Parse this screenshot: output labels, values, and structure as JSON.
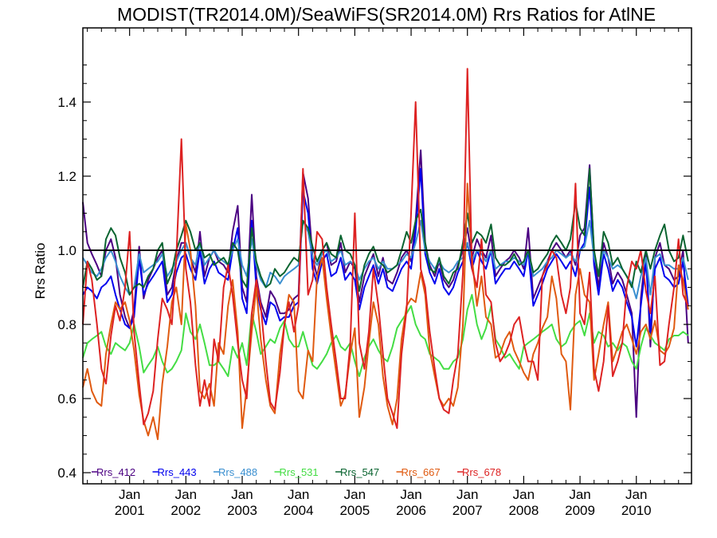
{
  "chart_data": {
    "type": "line",
    "title": "MODIST(TR2014.0M)/SeaWiFS(SR2014.0M)  Rrs Ratios for AtlNE",
    "xlabel": "",
    "ylabel": "Rrs Ratio",
    "ylim": [
      0.37,
      1.6
    ],
    "ytick_labels": [
      "0.4",
      "0.6",
      "0.8",
      "1.0",
      "1.2",
      "1.4"
    ],
    "xlim": [
      2000.17,
      2010.98
    ],
    "x_ticks": [
      {
        "month": "Jan",
        "year": "2001"
      },
      {
        "month": "Jan",
        "year": "2002"
      },
      {
        "month": "Jan",
        "year": "2003"
      },
      {
        "month": "Jan",
        "year": "2004"
      },
      {
        "month": "Jan",
        "year": "2005"
      },
      {
        "month": "Jan",
        "year": "2006"
      },
      {
        "month": "Jan",
        "year": "2007"
      },
      {
        "month": "Jan",
        "year": "2008"
      },
      {
        "month": "Jan",
        "year": "2009"
      },
      {
        "month": "Jan",
        "year": "2010"
      }
    ],
    "reference_line": 1.0,
    "grid": false,
    "legend_position": "bottom",
    "x": [
      2000.17,
      2000.25,
      2000.33,
      2000.42,
      2000.5,
      2000.58,
      2000.67,
      2000.75,
      2000.83,
      2000.92,
      2001.0,
      2001.08,
      2001.17,
      2001.25,
      2001.33,
      2001.42,
      2001.5,
      2001.58,
      2001.67,
      2001.75,
      2001.83,
      2001.92,
      2002.0,
      2002.08,
      2002.17,
      2002.25,
      2002.33,
      2002.42,
      2002.5,
      2002.58,
      2002.67,
      2002.75,
      2002.83,
      2002.92,
      2003.0,
      2003.08,
      2003.17,
      2003.25,
      2003.33,
      2003.42,
      2003.5,
      2003.58,
      2003.67,
      2003.75,
      2003.83,
      2003.92,
      2004.0,
      2004.08,
      2004.17,
      2004.25,
      2004.33,
      2004.42,
      2004.5,
      2004.58,
      2004.67,
      2004.75,
      2004.83,
      2004.92,
      2005.0,
      2005.08,
      2005.17,
      2005.25,
      2005.33,
      2005.42,
      2005.5,
      2005.58,
      2005.67,
      2005.75,
      2005.83,
      2005.92,
      2006.0,
      2006.08,
      2006.17,
      2006.25,
      2006.33,
      2006.42,
      2006.5,
      2006.58,
      2006.67,
      2006.75,
      2006.83,
      2006.92,
      2007.0,
      2007.08,
      2007.17,
      2007.25,
      2007.33,
      2007.42,
      2007.5,
      2007.58,
      2007.67,
      2007.75,
      2007.83,
      2007.92,
      2008.0,
      2008.08,
      2008.17,
      2008.25,
      2008.33,
      2008.42,
      2008.5,
      2008.58,
      2008.67,
      2008.75,
      2008.83,
      2008.92,
      2009.0,
      2009.08,
      2009.17,
      2009.25,
      2009.33,
      2009.42,
      2009.5,
      2009.58,
      2009.67,
      2009.75,
      2009.83,
      2009.92,
      2010.0,
      2010.08,
      2010.17,
      2010.25,
      2010.33,
      2010.42,
      2010.5,
      2010.58,
      2010.67,
      2010.75,
      2010.83,
      2010.92
    ],
    "series": [
      {
        "name": "Rrs_412",
        "color": "#4b0082",
        "values": [
          1.13,
          1.02,
          0.99,
          0.96,
          0.93,
          1.0,
          1.03,
          0.98,
          0.88,
          0.82,
          0.79,
          0.84,
          1.01,
          0.87,
          0.92,
          0.95,
          0.98,
          1.0,
          0.88,
          0.9,
          0.97,
          1.02,
          1.02,
          0.98,
          0.94,
          1.05,
          0.93,
          0.98,
          1.0,
          0.97,
          0.96,
          0.94,
          1.05,
          1.12,
          0.9,
          0.86,
          1.15,
          0.93,
          0.86,
          0.82,
          0.89,
          0.87,
          0.83,
          0.83,
          0.84,
          0.87,
          0.88,
          1.21,
          1.14,
          0.98,
          0.93,
          1.0,
          1.02,
          0.96,
          0.97,
          1.02,
          0.94,
          0.97,
          0.95,
          0.86,
          0.93,
          0.96,
          0.99,
          0.93,
          0.98,
          0.92,
          0.91,
          0.94,
          0.98,
          1.0,
          0.97,
          1.08,
          1.27,
          1.02,
          0.96,
          0.93,
          0.97,
          0.92,
          0.9,
          0.92,
          0.96,
          1.0,
          1.06,
          0.98,
          1.03,
          1.0,
          0.98,
          1.04,
          0.93,
          0.95,
          0.97,
          0.98,
          1.0,
          0.98,
          0.95,
          1.06,
          0.87,
          0.9,
          0.93,
          0.97,
          1.0,
          1.02,
          1.0,
          0.98,
          1.0,
          0.96,
          1.04,
          1.06,
          1.23,
          0.99,
          0.9,
          1.02,
          0.98,
          0.91,
          0.94,
          0.92,
          0.88,
          0.83,
          0.55,
          0.87,
          1.0,
          0.74,
          0.98,
          1.02,
          0.96,
          0.95,
          0.92,
          0.93,
          1.0,
          0.75
        ]
      },
      {
        "name": "Rrs_443",
        "color": "#0000ee",
        "values": [
          0.88,
          0.9,
          0.89,
          0.87,
          0.9,
          0.91,
          0.93,
          0.88,
          0.84,
          0.8,
          0.79,
          0.82,
          0.98,
          0.88,
          0.91,
          0.93,
          0.95,
          0.97,
          0.86,
          0.88,
          0.94,
          0.98,
          0.99,
          0.95,
          0.92,
          1.0,
          0.91,
          0.95,
          0.97,
          0.94,
          0.93,
          0.92,
          1.0,
          1.06,
          0.87,
          0.83,
          1.08,
          0.9,
          0.84,
          0.8,
          0.86,
          0.85,
          0.81,
          0.82,
          0.82,
          0.85,
          0.86,
          1.16,
          1.1,
          0.95,
          0.91,
          0.97,
          0.99,
          0.93,
          0.94,
          0.98,
          0.92,
          0.94,
          0.92,
          0.84,
          0.9,
          0.93,
          0.96,
          0.91,
          0.95,
          0.9,
          0.89,
          0.92,
          0.95,
          0.97,
          0.95,
          1.05,
          1.22,
          0.99,
          0.94,
          0.91,
          0.95,
          0.9,
          0.88,
          0.9,
          0.94,
          0.97,
          1.02,
          0.95,
          1.0,
          0.97,
          0.95,
          1.0,
          0.91,
          0.93,
          0.95,
          0.95,
          0.97,
          0.95,
          0.93,
          1.0,
          0.85,
          0.88,
          0.91,
          0.95,
          0.97,
          0.99,
          0.97,
          0.95,
          0.97,
          0.93,
          1.0,
          1.02,
          1.17,
          0.96,
          0.88,
          0.99,
          0.95,
          0.89,
          0.92,
          0.9,
          0.86,
          0.82,
          0.74,
          0.85,
          0.97,
          0.78,
          0.95,
          0.98,
          0.93,
          0.92,
          0.9,
          0.91,
          0.97,
          0.85
        ]
      },
      {
        "name": "Rrs_488",
        "color": "#3a8fd0",
        "values": [
          0.98,
          0.96,
          0.94,
          0.93,
          0.95,
          0.98,
          1.0,
          0.97,
          0.93,
          0.9,
          0.88,
          0.9,
          0.99,
          0.94,
          0.95,
          0.96,
          0.97,
          0.99,
          0.93,
          0.95,
          0.97,
          1.0,
          1.02,
          0.98,
          0.96,
          1.02,
          0.96,
          0.98,
          1.0,
          0.98,
          0.97,
          0.96,
          1.0,
          1.03,
          0.96,
          0.93,
          1.03,
          0.96,
          0.92,
          0.9,
          0.94,
          0.93,
          0.91,
          0.93,
          0.94,
          0.95,
          0.96,
          1.08,
          1.05,
          0.98,
          0.96,
          0.99,
          1.0,
          0.97,
          0.98,
          1.0,
          0.96,
          0.97,
          0.96,
          0.92,
          0.95,
          0.97,
          0.98,
          0.95,
          0.97,
          0.95,
          0.95,
          0.96,
          0.97,
          0.99,
          0.98,
          1.02,
          1.08,
          1.0,
          0.97,
          0.95,
          0.97,
          0.95,
          0.94,
          0.95,
          0.97,
          0.98,
          1.02,
          0.97,
          1.0,
          0.99,
          0.97,
          1.0,
          0.95,
          0.96,
          0.97,
          0.97,
          0.98,
          0.97,
          0.96,
          1.0,
          0.93,
          0.94,
          0.95,
          0.97,
          0.98,
          1.0,
          0.99,
          0.98,
          0.99,
          0.97,
          1.0,
          1.01,
          1.08,
          0.98,
          0.94,
          1.0,
          0.98,
          0.95,
          0.96,
          0.95,
          0.93,
          0.91,
          0.87,
          0.93,
          0.98,
          0.88,
          0.98,
          0.99,
          0.96,
          0.96,
          0.95,
          0.95,
          0.98,
          0.92
        ]
      },
      {
        "name": "Rrs_531",
        "color": "#44dd44",
        "values": [
          0.71,
          0.75,
          0.76,
          0.77,
          0.78,
          0.74,
          0.72,
          0.75,
          0.74,
          0.73,
          0.75,
          0.8,
          0.74,
          0.67,
          0.69,
          0.71,
          0.74,
          0.7,
          0.67,
          0.68,
          0.7,
          0.73,
          0.83,
          0.78,
          0.76,
          0.8,
          0.75,
          0.69,
          0.69,
          0.7,
          0.68,
          0.66,
          0.74,
          0.71,
          0.75,
          0.69,
          0.83,
          0.78,
          0.72,
          0.74,
          0.76,
          0.75,
          0.79,
          0.81,
          0.76,
          0.74,
          0.74,
          0.78,
          0.73,
          0.69,
          0.68,
          0.7,
          0.72,
          0.75,
          0.77,
          0.74,
          0.73,
          0.75,
          0.7,
          0.66,
          0.71,
          0.74,
          0.76,
          0.73,
          0.71,
          0.7,
          0.74,
          0.79,
          0.81,
          0.83,
          0.85,
          0.8,
          0.77,
          0.76,
          0.72,
          0.71,
          0.7,
          0.68,
          0.68,
          0.7,
          0.71,
          0.76,
          0.84,
          0.88,
          0.8,
          0.76,
          0.79,
          0.85,
          0.76,
          0.74,
          0.71,
          0.72,
          0.7,
          0.68,
          0.74,
          0.75,
          0.76,
          0.77,
          0.78,
          0.79,
          0.8,
          0.76,
          0.74,
          0.75,
          0.78,
          0.8,
          0.81,
          0.77,
          0.83,
          0.75,
          0.78,
          0.77,
          0.74,
          0.75,
          0.73,
          0.75,
          0.74,
          0.7,
          0.68,
          0.74,
          0.79,
          0.77,
          0.75,
          0.74,
          0.73,
          0.76,
          0.77,
          0.77,
          0.78,
          0.77
        ]
      },
      {
        "name": "Rrs_547",
        "color": "#0a6430",
        "values": [
          0.9,
          0.97,
          0.95,
          0.92,
          0.93,
          1.03,
          1.06,
          1.04,
          0.98,
          0.94,
          0.88,
          0.9,
          0.91,
          0.9,
          0.93,
          0.95,
          1.0,
          1.02,
          0.91,
          0.94,
          1.0,
          1.04,
          1.08,
          1.05,
          1.0,
          1.02,
          0.98,
          0.99,
          0.96,
          0.97,
          0.98,
          0.96,
          1.02,
          1.0,
          0.92,
          0.9,
          1.06,
          0.97,
          0.93,
          0.9,
          0.91,
          0.95,
          0.93,
          0.94,
          0.96,
          0.98,
          0.97,
          1.08,
          1.06,
          1.01,
          0.97,
          1.0,
          1.02,
          0.99,
          0.98,
          1.04,
          1.0,
          0.99,
          0.96,
          0.89,
          0.96,
          0.99,
          1.01,
          0.97,
          0.96,
          0.94,
          0.95,
          0.96,
          1.0,
          1.05,
          1.02,
          1.08,
          1.11,
          1.02,
          0.95,
          0.94,
          0.98,
          0.93,
          0.91,
          0.94,
          0.95,
          1.02,
          1.1,
          1.02,
          1.05,
          1.04,
          1.02,
          1.07,
          0.98,
          0.96,
          0.96,
          0.97,
          0.99,
          0.96,
          0.97,
          1.0,
          0.94,
          0.95,
          0.97,
          0.99,
          1.02,
          1.04,
          1.02,
          1.0,
          1.03,
          1.13,
          1.06,
          1.04,
          1.22,
          1.0,
          0.93,
          1.05,
          1.02,
          0.96,
          0.98,
          0.95,
          0.93,
          0.9,
          0.97,
          0.94,
          1.0,
          0.95,
          1.0,
          1.04,
          1.07,
          1.0,
          0.97,
          0.98,
          1.04,
          0.97
        ]
      },
      {
        "name": "Rrs_667",
        "color": "#e05a10",
        "values": [
          0.63,
          0.68,
          0.62,
          0.59,
          0.58,
          0.72,
          0.8,
          0.86,
          0.84,
          0.86,
          0.81,
          0.73,
          0.61,
          0.54,
          0.5,
          0.55,
          0.49,
          0.64,
          0.74,
          0.86,
          0.9,
          0.8,
          1.07,
          1.0,
          0.85,
          0.62,
          0.6,
          0.64,
          0.58,
          0.75,
          0.72,
          0.85,
          0.92,
          0.78,
          0.52,
          0.63,
          0.78,
          0.9,
          0.76,
          0.65,
          0.58,
          0.56,
          0.72,
          0.8,
          0.88,
          0.86,
          0.62,
          0.6,
          0.73,
          0.7,
          0.93,
          0.98,
          0.87,
          0.77,
          0.67,
          0.58,
          0.61,
          0.72,
          0.79,
          0.55,
          0.63,
          0.75,
          0.86,
          0.8,
          0.66,
          0.58,
          0.53,
          0.6,
          0.76,
          0.85,
          0.87,
          0.86,
          0.94,
          0.88,
          0.73,
          0.66,
          0.6,
          0.58,
          0.6,
          0.58,
          0.63,
          0.8,
          1.18,
          0.98,
          0.85,
          0.93,
          0.82,
          0.8,
          0.71,
          0.72,
          0.76,
          0.78,
          0.73,
          0.7,
          0.67,
          0.65,
          0.72,
          0.75,
          0.79,
          0.82,
          0.93,
          0.87,
          0.72,
          0.7,
          0.57,
          0.88,
          0.95,
          0.88,
          0.86,
          0.65,
          0.72,
          0.8,
          0.86,
          0.7,
          0.74,
          0.78,
          0.8,
          0.76,
          0.72,
          0.78,
          0.8,
          0.76,
          0.81,
          0.73,
          0.72,
          0.74,
          0.79,
          0.96,
          0.92,
          0.84
        ]
      },
      {
        "name": "Rrs_678",
        "color": "#dd2222",
        "values": [
          0.8,
          0.97,
          0.92,
          0.8,
          0.68,
          0.64,
          0.77,
          0.85,
          0.81,
          0.9,
          1.05,
          0.78,
          0.64,
          0.53,
          0.56,
          0.62,
          0.76,
          0.87,
          0.84,
          0.8,
          0.98,
          1.3,
          0.95,
          0.86,
          0.69,
          0.58,
          0.65,
          0.58,
          0.76,
          0.7,
          0.9,
          0.96,
          0.88,
          0.75,
          0.65,
          0.6,
          0.83,
          0.92,
          0.85,
          0.7,
          0.59,
          0.57,
          0.67,
          0.8,
          0.86,
          0.78,
          0.85,
          1.22,
          0.88,
          0.92,
          1.05,
          1.03,
          0.9,
          0.8,
          0.7,
          0.6,
          0.6,
          0.75,
          1.1,
          0.75,
          0.68,
          0.78,
          0.95,
          0.85,
          0.72,
          0.6,
          0.56,
          0.52,
          0.72,
          0.84,
          1.1,
          1.4,
          0.95,
          0.9,
          0.78,
          0.68,
          0.6,
          0.57,
          0.56,
          0.65,
          0.72,
          0.94,
          1.49,
          0.95,
          0.9,
          1.03,
          0.88,
          0.86,
          0.75,
          0.7,
          0.72,
          0.75,
          0.8,
          0.82,
          0.75,
          0.7,
          0.7,
          0.65,
          0.93,
          0.96,
          1.0,
          0.98,
          0.88,
          0.83,
          0.9,
          1.18,
          0.83,
          0.8,
          0.94,
          0.68,
          0.62,
          0.7,
          0.85,
          0.66,
          0.7,
          0.75,
          0.9,
          0.97,
          0.95,
          1.0,
          0.89,
          0.83,
          0.93,
          0.69,
          0.7,
          0.8,
          0.9,
          1.03,
          0.88,
          0.85
        ]
      }
    ]
  }
}
